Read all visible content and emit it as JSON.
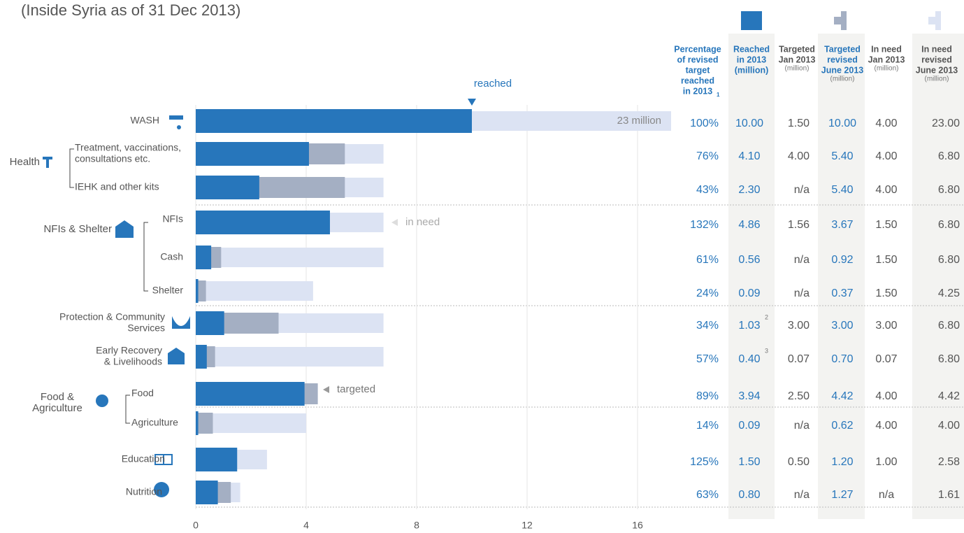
{
  "chart_data": {
    "type": "bar",
    "title": "(Inside Syria as of  31 Dec 2013)",
    "rows": [
      {
        "label": "WASH"
      },
      {
        "label": "Health",
        "items": [
          [
            "Treatment, vaccinations,",
            "consultations etc."
          ],
          "IEHK and other kits"
        ]
      },
      {
        "label": "NFIs & Shelter",
        "items": [
          "NFIs",
          "Cash",
          "Shelter"
        ]
      },
      {
        "label": [
          "Protection & Community",
          "Services"
        ]
      },
      {
        "label": [
          "Early Recovery",
          "& Livelihoods"
        ]
      },
      {
        "label": [
          "Food &",
          "Agriculture"
        ],
        "items": [
          "Food",
          "Agriculture"
        ]
      },
      {
        "label": "Education"
      },
      {
        "label": "Nutrition"
      }
    ],
    "annotations": [
      "reached",
      "23 million",
      "in need",
      "targeted"
    ],
    "xlim": [
      0,
      17.2
    ],
    "xticks": [
      0,
      4,
      8,
      12,
      16
    ],
    "grid": true,
    "series": [
      {
        "name": [
          "Percentage",
          "of revised",
          "target",
          "reached",
          "in 2013"
        ],
        "superscript": "1",
        "values": [
          100,
          76,
          43,
          132,
          61,
          24,
          34,
          57,
          89,
          14,
          125,
          63
        ],
        "value_labels": [
          "100%",
          "76%",
          "43%",
          "132%",
          "61%",
          "24%",
          "34%",
          "57%",
          "89%",
          "14%",
          "125%",
          "63%"
        ]
      },
      {
        "name": [
          "Reached",
          "in 2013",
          "(million)"
        ],
        "color": "#2776bb",
        "values": [
          10.0,
          4.1,
          2.3,
          4.86,
          0.56,
          0.09,
          1.03,
          0.4,
          3.94,
          0.09,
          1.5,
          0.8
        ],
        "value_labels": [
          "10.00",
          "4.10",
          "2.30",
          "4.86",
          "0.56",
          "0.09",
          "1.03",
          "0.40",
          "3.94",
          "0.09",
          "1.50",
          "0.80"
        ],
        "notes": [
          null,
          null,
          null,
          null,
          null,
          null,
          "2",
          "3",
          null,
          null,
          null,
          null
        ]
      },
      {
        "name": [
          "Targeted",
          "Jan 2013"
        ],
        "unit": "(million)",
        "values": [
          1.5,
          4.0,
          null,
          1.56,
          null,
          null,
          3.0,
          0.07,
          2.5,
          null,
          0.5,
          null
        ],
        "value_labels": [
          "1.50",
          "4.00",
          "n/a",
          "1.56",
          "n/a",
          "n/a",
          "3.00",
          "0.07",
          "2.50",
          "n/a",
          "0.50",
          "n/a"
        ]
      },
      {
        "name": [
          "Targeted",
          "revised",
          "June 2013"
        ],
        "unit": "(million)",
        "color": "#a4afc3",
        "values": [
          10.0,
          5.4,
          5.4,
          3.67,
          0.92,
          0.37,
          3.0,
          0.7,
          4.42,
          0.62,
          1.2,
          1.27
        ],
        "value_labels": [
          "10.00",
          "5.40",
          "5.40",
          "3.67",
          "0.92",
          "0.37",
          "3.00",
          "0.70",
          "4.42",
          "0.62",
          "1.20",
          "1.27"
        ]
      },
      {
        "name": [
          "In need",
          "Jan 2013"
        ],
        "unit": "(million)",
        "values": [
          4.0,
          4.0,
          4.0,
          1.5,
          1.5,
          1.5,
          3.0,
          0.07,
          4.0,
          4.0,
          1.0,
          null
        ],
        "value_labels": [
          "4.00",
          "4.00",
          "4.00",
          "1.50",
          "1.50",
          "1.50",
          "3.00",
          "0.07",
          "4.00",
          "4.00",
          "1.00",
          "n/a"
        ]
      },
      {
        "name": [
          "In need",
          "revised",
          "June 2013"
        ],
        "unit": "(million)",
        "color": "#dce3f3",
        "values": [
          23.0,
          6.8,
          6.8,
          6.8,
          6.8,
          4.25,
          6.8,
          6.8,
          4.42,
          4.0,
          2.58,
          1.61
        ],
        "value_labels": [
          "23.00",
          "6.80",
          "6.80",
          "6.80",
          "6.80",
          "4.25",
          "6.80",
          "6.80",
          "4.42",
          "4.00",
          "2.58",
          "1.61"
        ]
      }
    ]
  }
}
